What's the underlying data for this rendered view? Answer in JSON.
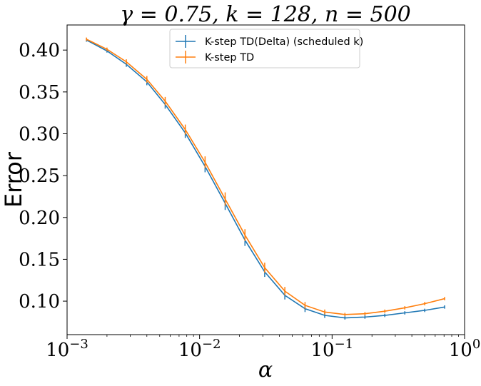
{
  "chart_data": {
    "type": "line",
    "title": "γ = 0.75, k = 128, n = 500",
    "xlabel": "α",
    "ylabel": "Error",
    "xscale": "log",
    "xlim": [
      0.001,
      1
    ],
    "ylim": [
      0.06,
      0.43
    ],
    "x_ticks": [
      {
        "value": 0.001,
        "base": "10",
        "exp": "−3"
      },
      {
        "value": 0.01,
        "base": "10",
        "exp": "−2"
      },
      {
        "value": 0.1,
        "base": "10",
        "exp": "−1"
      },
      {
        "value": 1,
        "base": "10",
        "exp": "0"
      }
    ],
    "y_ticks": [
      0.1,
      0.15,
      0.2,
      0.25,
      0.3,
      0.35,
      0.4
    ],
    "y_tick_labels": [
      "0.10",
      "0.15",
      "0.20",
      "0.25",
      "0.30",
      "0.35",
      "0.40"
    ],
    "grid": false,
    "legend_position": "top-center",
    "x": [
      0.0014,
      0.002,
      0.0028,
      0.004,
      0.0055,
      0.0078,
      0.011,
      0.0156,
      0.022,
      0.031,
      0.044,
      0.0625,
      0.088,
      0.125,
      0.177,
      0.25,
      0.354,
      0.5,
      0.707
    ],
    "series": [
      {
        "name": "K-step TD(Delta) (scheduled k)",
        "color": "#1f77b4",
        "values": [
          0.412,
          0.399,
          0.383,
          0.362,
          0.335,
          0.301,
          0.261,
          0.217,
          0.173,
          0.135,
          0.107,
          0.091,
          0.083,
          0.08,
          0.081,
          0.083,
          0.086,
          0.089,
          0.093
        ],
        "err": [
          0.002,
          0.002,
          0.003,
          0.004,
          0.005,
          0.006,
          0.007,
          0.008,
          0.007,
          0.006,
          0.005,
          0.004,
          0.003,
          0.002,
          0.002,
          0.002,
          0.002,
          0.002,
          0.002
        ]
      },
      {
        "name": "K-step TD",
        "color": "#ff7f0e",
        "values": [
          0.413,
          0.401,
          0.386,
          0.365,
          0.339,
          0.305,
          0.266,
          0.222,
          0.179,
          0.14,
          0.112,
          0.095,
          0.087,
          0.084,
          0.085,
          0.088,
          0.092,
          0.097,
          0.103
        ],
        "err": [
          0.002,
          0.002,
          0.003,
          0.004,
          0.005,
          0.006,
          0.007,
          0.008,
          0.007,
          0.006,
          0.005,
          0.004,
          0.003,
          0.002,
          0.002,
          0.002,
          0.002,
          0.002,
          0.002
        ]
      }
    ]
  }
}
